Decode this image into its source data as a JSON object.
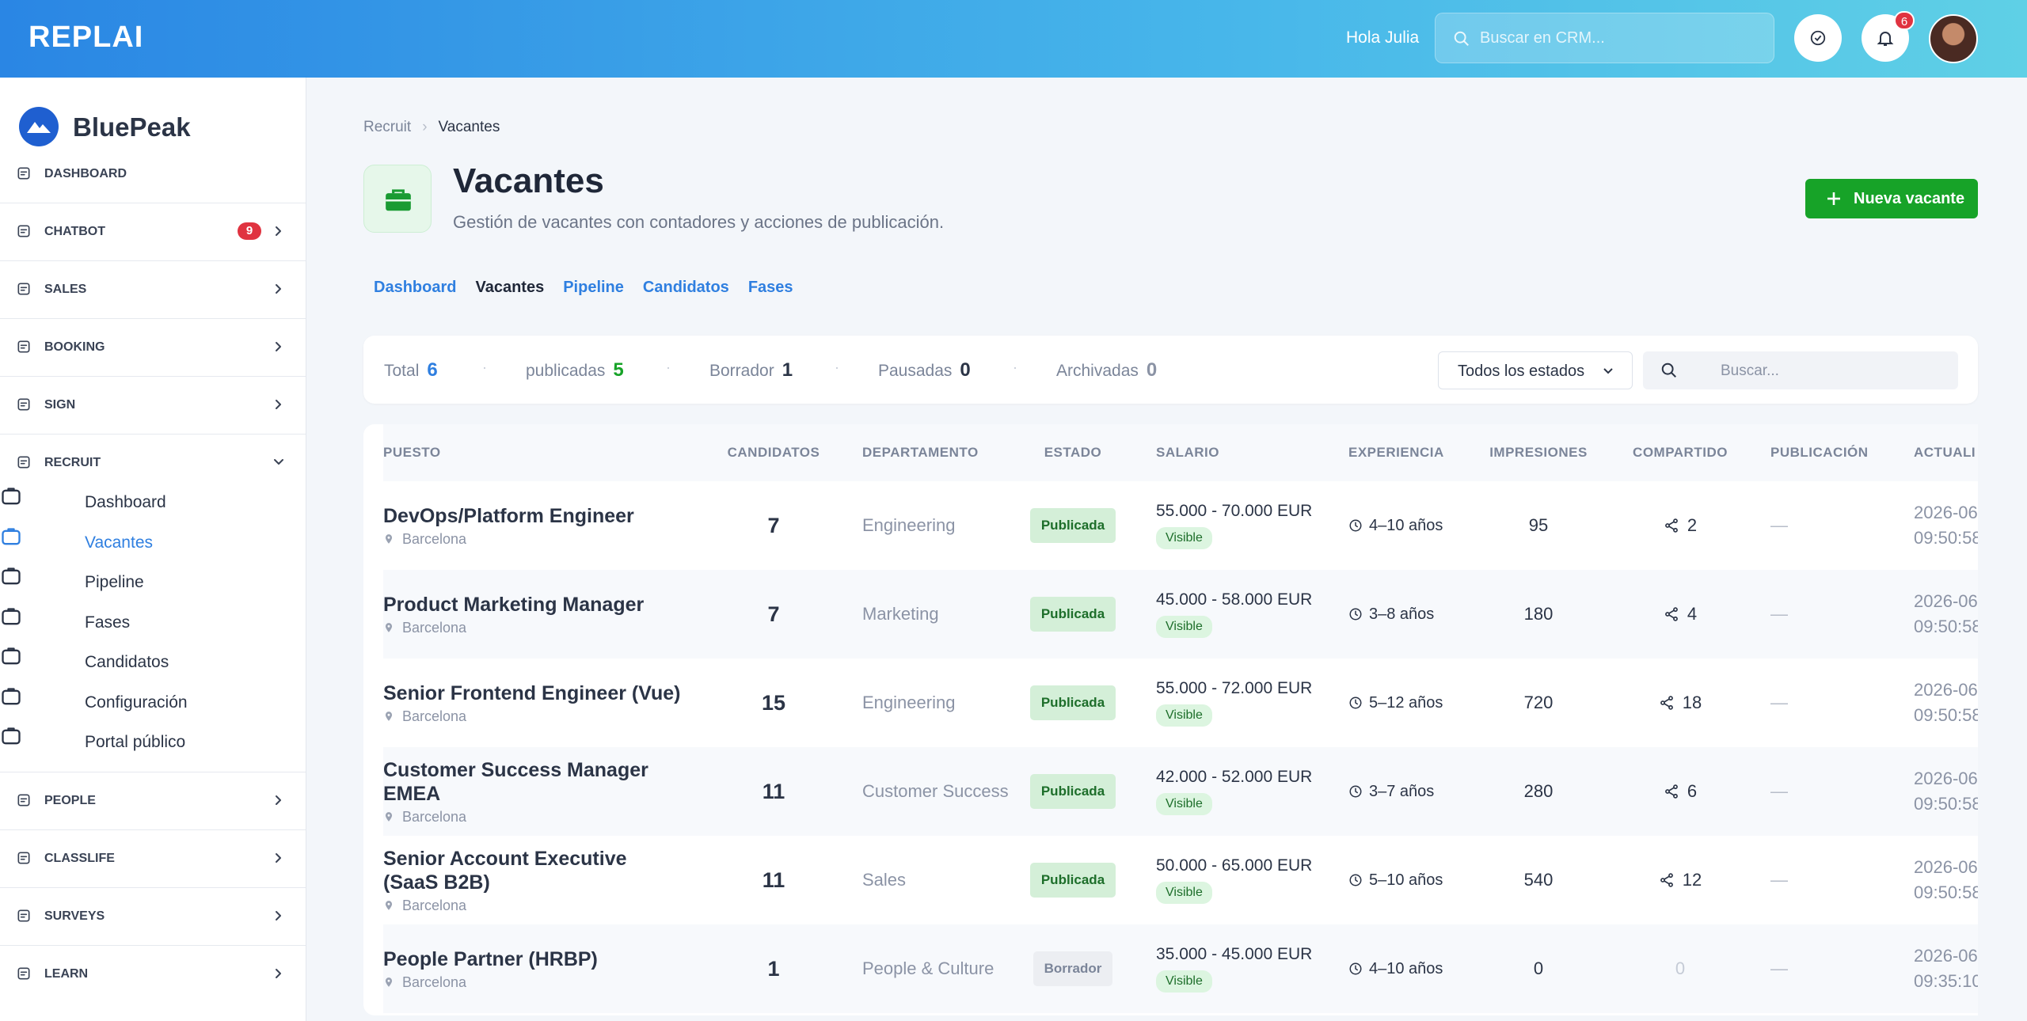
{
  "header": {
    "logo": "REPLAI",
    "greeting": "Hola Julia",
    "search_placeholder": "Buscar en CRM...",
    "notifications": 6
  },
  "sidebar": {
    "brand": "BluePeak",
    "items": [
      {
        "label": "DASHBOARD"
      },
      {
        "label": "CHATBOT",
        "badge": 9
      },
      {
        "label": "SALES"
      },
      {
        "label": "BOOKING"
      },
      {
        "label": "SIGN"
      },
      {
        "label": "RECRUIT",
        "children": [
          "Dashboard",
          "Vacantes",
          "Pipeline",
          "Fases",
          "Candidatos",
          "Configuración",
          "Portal público"
        ]
      },
      {
        "label": "PEOPLE"
      },
      {
        "label": "CLASSLIFE"
      },
      {
        "label": "SURVEYS"
      },
      {
        "label": "LEARN"
      }
    ]
  },
  "breadcrumb": [
    "Recruit",
    "Vacantes"
  ],
  "page": {
    "title": "Vacantes",
    "subtitle": "Gestión de vacantes con contadores y acciones de publicación.",
    "button": "Nueva vacante"
  },
  "tabs": [
    "Dashboard",
    "Vacantes",
    "Pipeline",
    "Candidatos",
    "Fases"
  ],
  "stats": [
    {
      "label": "Total",
      "value": 6
    },
    {
      "label": "publicadas",
      "value": 5
    },
    {
      "label": "Borrador",
      "value": 1
    },
    {
      "label": "Pausadas",
      "value": 0
    },
    {
      "label": "Archivadas",
      "value": 0
    }
  ],
  "filter": {
    "status": "Todos los estados",
    "search_placeholder": "Buscar..."
  },
  "table": {
    "columns": [
      "PUESTO",
      "CANDIDATOS",
      "DEPARTAMENTO",
      "ESTADO",
      "SALARIO",
      "EXPERIENCIA",
      "IMPRESIONES",
      "COMPARTIDO",
      "PUBLICACIÓN",
      "ACTUALI"
    ],
    "rows": [
      {
        "title": "DevOps/Platform Engineer",
        "location": "Barcelona",
        "candidates": 7,
        "department": "Engineering",
        "status": "Publicada",
        "salary": "55.000 - 70.000 EUR",
        "visibility": "Visible",
        "experience": "4–10 años",
        "impressions": 95,
        "shares": 2,
        "publication": "—",
        "updated_date": "2026-06",
        "updated_time": "09:50:58"
      },
      {
        "title": "Product Marketing Manager",
        "location": "Barcelona",
        "candidates": 7,
        "department": "Marketing",
        "status": "Publicada",
        "salary": "45.000 - 58.000 EUR",
        "visibility": "Visible",
        "experience": "3–8 años",
        "impressions": 180,
        "shares": 4,
        "publication": "—",
        "updated_date": "2026-06",
        "updated_time": "09:50:58"
      },
      {
        "title": "Senior Frontend Engineer (Vue)",
        "location": "Barcelona",
        "candidates": 15,
        "department": "Engineering",
        "status": "Publicada",
        "salary": "55.000 - 72.000 EUR",
        "visibility": "Visible",
        "experience": "5–12 años",
        "impressions": 720,
        "shares": 18,
        "publication": "—",
        "updated_date": "2026-06",
        "updated_time": "09:50:58"
      },
      {
        "title": "Customer Success Manager EMEA",
        "location": "Barcelona",
        "candidates": 11,
        "department": "Customer Success",
        "status": "Publicada",
        "salary": "42.000 - 52.000 EUR",
        "visibility": "Visible",
        "experience": "3–7 años",
        "impressions": 280,
        "shares": 6,
        "publication": "—",
        "updated_date": "2026-06",
        "updated_time": "09:50:58"
      },
      {
        "title": "Senior Account Executive (SaaS B2B)",
        "location": "Barcelona",
        "candidates": 11,
        "department": "Sales",
        "status": "Publicada",
        "salary": "50.000 - 65.000 EUR",
        "visibility": "Visible",
        "experience": "5–10 años",
        "impressions": 540,
        "shares": 12,
        "publication": "—",
        "updated_date": "2026-06",
        "updated_time": "09:50:58"
      },
      {
        "title": "People Partner (HRBP)",
        "location": "Barcelona",
        "candidates": 1,
        "department": "People & Culture",
        "status": "Borrador",
        "salary": "35.000 - 45.000 EUR",
        "visibility": "Visible",
        "experience": "4–10 años",
        "impressions": 0,
        "shares": 0,
        "publication": "—",
        "updated_date": "2026-06",
        "updated_time": "09:35:10"
      }
    ]
  }
}
